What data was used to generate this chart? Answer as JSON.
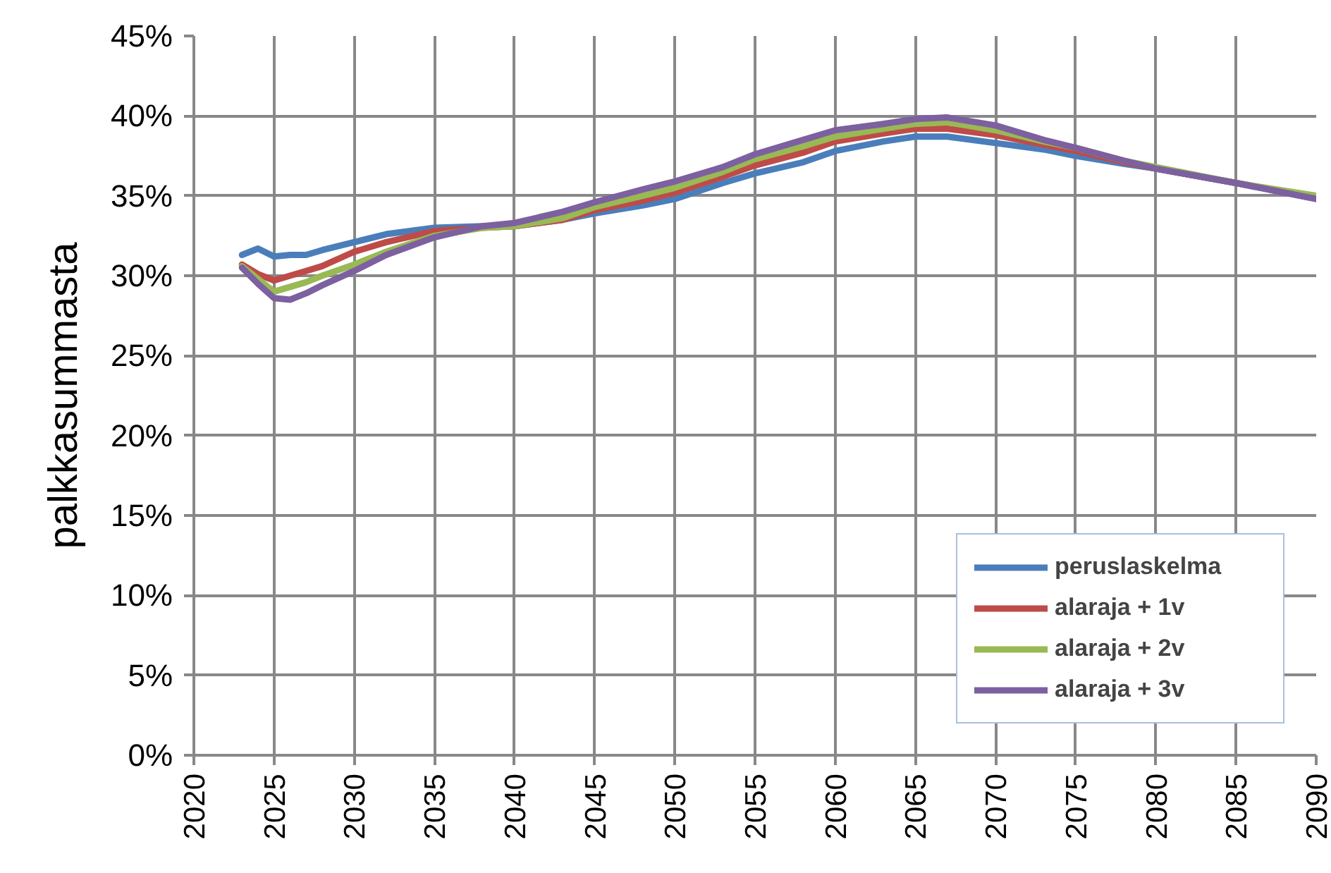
{
  "chart_data": {
    "type": "line",
    "ylabel": "palkkasummasta",
    "x": [
      2023,
      2024,
      2025,
      2026,
      2027,
      2028,
      2030,
      2032,
      2035,
      2038,
      2040,
      2043,
      2045,
      2048,
      2050,
      2053,
      2055,
      2058,
      2060,
      2063,
      2065,
      2067,
      2070,
      2073,
      2075,
      2078,
      2080,
      2085,
      2090
    ],
    "series": [
      {
        "name": "peruslaskelma",
        "color": "#4a7ebb",
        "values": [
          31.3,
          31.7,
          31.2,
          31.3,
          31.3,
          31.6,
          32.1,
          32.6,
          33.0,
          33.1,
          33.1,
          33.5,
          33.9,
          34.4,
          34.8,
          35.8,
          36.4,
          37.1,
          37.8,
          38.4,
          38.7,
          38.7,
          38.3,
          37.9,
          37.5,
          37.0,
          36.7,
          35.8,
          34.8
        ]
      },
      {
        "name": "alaraja + 1v",
        "color": "#be4b48",
        "values": [
          30.7,
          30.1,
          29.7,
          30.0,
          30.3,
          30.6,
          31.5,
          32.1,
          32.8,
          33.0,
          33.1,
          33.5,
          34.1,
          34.7,
          35.2,
          36.2,
          36.9,
          37.7,
          38.4,
          38.9,
          39.2,
          39.2,
          38.8,
          38.2,
          37.8,
          37.1,
          36.7,
          35.8,
          34.9
        ]
      },
      {
        "name": "alaraja + 2v",
        "color": "#98b954",
        "values": [
          30.6,
          29.8,
          29.0,
          29.3,
          29.6,
          30.0,
          30.7,
          31.5,
          32.5,
          33.0,
          33.1,
          33.6,
          34.3,
          35.0,
          35.5,
          36.5,
          37.3,
          38.1,
          38.7,
          39.2,
          39.5,
          39.6,
          39.1,
          38.4,
          38.0,
          37.2,
          36.8,
          35.8,
          35.0
        ]
      },
      {
        "name": "alaraja + 3v",
        "color": "#7d60a0",
        "values": [
          30.5,
          29.5,
          28.6,
          28.5,
          28.9,
          29.4,
          30.3,
          31.3,
          32.4,
          33.1,
          33.3,
          34.0,
          34.6,
          35.4,
          35.9,
          36.8,
          37.6,
          38.5,
          39.1,
          39.5,
          39.8,
          39.9,
          39.4,
          38.5,
          38.0,
          37.2,
          36.7,
          35.8,
          34.8
        ]
      }
    ],
    "xlim": [
      2020,
      2090
    ],
    "xticks": [
      2020,
      2025,
      2030,
      2035,
      2040,
      2045,
      2050,
      2055,
      2060,
      2065,
      2070,
      2075,
      2080,
      2085,
      2090
    ],
    "ylim": [
      0,
      45
    ],
    "yticks": [
      {
        "value": 0,
        "label": "0%"
      },
      {
        "value": 5,
        "label": "5%"
      },
      {
        "value": 10,
        "label": "10%"
      },
      {
        "value": 15,
        "label": "15%"
      },
      {
        "value": 20,
        "label": "20%"
      },
      {
        "value": 25,
        "label": "25%"
      },
      {
        "value": 30,
        "label": "30%"
      },
      {
        "value": 35,
        "label": "35%"
      },
      {
        "value": 40,
        "label": "40%"
      },
      {
        "value": 45,
        "label": "45%"
      }
    ],
    "grid": true,
    "legend": "bottom right",
    "line_style": "solid"
  }
}
